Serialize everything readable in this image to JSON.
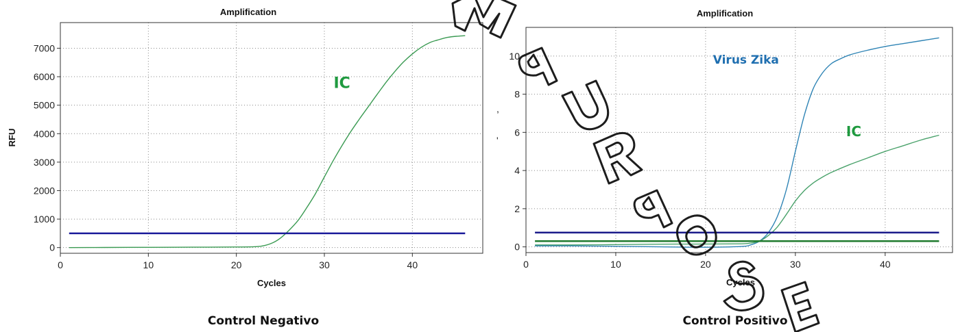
{
  "chart_data": [
    {
      "type": "line",
      "title": "Amplification",
      "caption": "Control Negativo",
      "xlabel": "Cycles",
      "ylabel": "RFU",
      "xlim": [
        0,
        48
      ],
      "ylim": [
        -200,
        7900
      ],
      "xticks": [
        0,
        10,
        20,
        30,
        40
      ],
      "yticks": [
        0,
        1000,
        2000,
        3000,
        4000,
        5000,
        6000,
        7000
      ],
      "grid": true,
      "series": [
        {
          "name": "IC",
          "color": "#3a9a52",
          "x": [
            1,
            5,
            10,
            15,
            20,
            22,
            23,
            24,
            25,
            26,
            27,
            28,
            29,
            30,
            31,
            32,
            33,
            34,
            35,
            36,
            37,
            38,
            39,
            40,
            41,
            42,
            43,
            44,
            45,
            46
          ],
          "y": [
            0,
            5,
            10,
            15,
            20,
            30,
            60,
            150,
            330,
            610,
            950,
            1400,
            1900,
            2480,
            3050,
            3580,
            4070,
            4520,
            4950,
            5380,
            5800,
            6180,
            6520,
            6800,
            7030,
            7200,
            7300,
            7380,
            7420,
            7440
          ]
        },
        {
          "name": "threshold",
          "color": "#1a1a9a",
          "x": [
            1,
            46
          ],
          "y": [
            500,
            500
          ]
        }
      ],
      "annotations": [
        {
          "text": "IC",
          "x": 32,
          "y": 5600,
          "color": "#1f9a3f"
        }
      ]
    },
    {
      "type": "line",
      "title": "Amplification",
      "caption": "Control Positivo",
      "xlabel": "Cycles",
      "ylabel": "",
      "xlim": [
        0,
        47.5
      ],
      "ylim": [
        -0.3,
        11.5
      ],
      "xticks": [
        0,
        10,
        20,
        30,
        40
      ],
      "yticks": [
        0,
        2,
        4,
        6,
        8,
        10
      ],
      "grid": true,
      "series": [
        {
          "name": "Virus Zika",
          "color": "#2f84b5",
          "x": [
            1,
            5,
            10,
            15,
            20,
            24,
            25,
            26,
            27,
            28,
            29,
            30,
            31,
            32,
            33,
            34,
            35,
            36,
            38,
            40,
            42,
            44,
            46
          ],
          "y": [
            0.05,
            0.05,
            0.03,
            0,
            -0.02,
            0.02,
            0.1,
            0.3,
            0.75,
            1.6,
            3.0,
            5.0,
            6.9,
            8.3,
            9.1,
            9.6,
            9.85,
            10.05,
            10.3,
            10.5,
            10.65,
            10.8,
            10.95
          ]
        },
        {
          "name": "IC",
          "color": "#4aa26b",
          "x": [
            1,
            5,
            10,
            15,
            20,
            24,
            25,
            26,
            27,
            28,
            29,
            30,
            31,
            32,
            33,
            34,
            36,
            38,
            40,
            42,
            44,
            46
          ],
          "y": [
            0.1,
            0.1,
            0.12,
            0.14,
            0.15,
            0.16,
            0.2,
            0.3,
            0.6,
            1.05,
            1.7,
            2.4,
            2.95,
            3.35,
            3.65,
            3.9,
            4.3,
            4.65,
            5.0,
            5.3,
            5.6,
            5.85
          ]
        },
        {
          "name": "threshold-zika",
          "color": "#1a1a8a",
          "x": [
            1,
            46
          ],
          "y": [
            0.75,
            0.75
          ]
        },
        {
          "name": "threshold-ic",
          "color": "#1f7a2e",
          "x": [
            1,
            46
          ],
          "y": [
            0.3,
            0.3
          ]
        }
      ],
      "annotations": [
        {
          "text": "Virus Zika",
          "x": 24.5,
          "y": 9.6,
          "color": "#1f6fb0"
        },
        {
          "text": "IC",
          "x": 36.5,
          "y": 5.8,
          "color": "#1f9a3f"
        }
      ]
    }
  ]
}
